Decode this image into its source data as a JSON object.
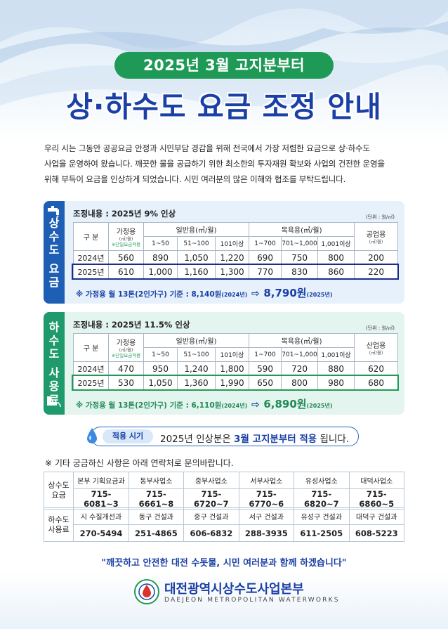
{
  "header": {
    "badge": "2025년 3월 고지분부터",
    "title": "상·하수도 요금 조정 안내"
  },
  "intro": {
    "line1": "우리 시는 그동안 공공요금 안정과 시민부담 경감을 위해 전국에서 가장 저렴한 요금으로 상·하수도",
    "line2": "사업을 운영하여 왔습니다. 깨끗한 물을 공급하기 위한 최소한의 투자재원 확보와 사업의 건전한 운영을",
    "line3": "위해 부득이 요금을 인상하게 되었습니다. 시민 여러분의 많은 이해와 협조를 부탁드립니다."
  },
  "water": {
    "side_chars": [
      "상",
      "수",
      "도",
      "요",
      "금"
    ],
    "adjust": "조정내용 : 2025년 9% 인상",
    "unit": "(단위 : 원/㎥)",
    "h_gubun": "구 분",
    "h_home": "가정용",
    "h_home_unit": "(㎥/월)",
    "h_home_note": "※단일요금적용",
    "h_general": "일반용(㎥/월)",
    "h_bath": "목욕용(㎥/월)",
    "h_ind": "공업용",
    "h_ind_unit": "(㎥/월)",
    "sub": [
      "1~50",
      "51~100",
      "101이상",
      "1~700",
      "701~1,000",
      "1,001이상"
    ],
    "rows": [
      {
        "year": "2024년",
        "v": [
          "560",
          "890",
          "1,050",
          "1,220",
          "690",
          "750",
          "800",
          "200"
        ]
      },
      {
        "year": "2025년",
        "v": [
          "610",
          "1,000",
          "1,160",
          "1,300",
          "770",
          "830",
          "860",
          "220"
        ]
      }
    ],
    "basis_pre": "※ 가정용 월 13톤(2인가구) 기준 : 8,140원",
    "basis_pre_year": "(2024년)",
    "basis_new": "8,790원",
    "basis_new_year": "(2025년)"
  },
  "sewer": {
    "side_chars": [
      "하",
      "수",
      "도",
      "사",
      "용",
      "료"
    ],
    "adjust": "조정내용 : 2025년 11.5% 인상",
    "unit": "(단위 : 원/㎥)",
    "h_gubun": "구 분",
    "h_home": "가정용",
    "h_home_unit": "(㎥/월)",
    "h_home_note": "※단일요금적용",
    "h_general": "일반용(㎥/월)",
    "h_bath": "목욕용(㎥/월)",
    "h_ind": "산업용",
    "h_ind_unit": "(㎥/월)",
    "sub": [
      "1~50",
      "51~100",
      "101이상",
      "1~700",
      "701~1,000",
      "1,001이상"
    ],
    "rows": [
      {
        "year": "2024년",
        "v": [
          "470",
          "950",
          "1,240",
          "1,800",
          "590",
          "720",
          "880",
          "620"
        ]
      },
      {
        "year": "2025년",
        "v": [
          "530",
          "1,050",
          "1,360",
          "1,990",
          "650",
          "800",
          "980",
          "680"
        ]
      }
    ],
    "basis_pre": "※ 가정용 월 13톤(2인가구) 기준 : 6,110원",
    "basis_pre_year": "(2024년)",
    "basis_new": "6,890원",
    "basis_new_year": "(2025년)"
  },
  "apply": {
    "label": "적용 시기",
    "text_pre": "2025년 인상분은",
    "text_bold": "3월 고지분부터 적용",
    "text_post": "됩니다."
  },
  "note": "※ 기타 궁금하신 사항은 아래 연락처로 문의바랍니다.",
  "contact_water": {
    "label_1": "상수도",
    "label_2": "요금",
    "names": [
      "본부 기획요금과",
      "동부사업소",
      "중부사업소",
      "서부사업소",
      "유성사업소",
      "대덕사업소"
    ],
    "phones": [
      "715-6081~3",
      "715-6661~8",
      "715-6720~7",
      "715-6770~6",
      "715-6820~7",
      "715-6860~5"
    ]
  },
  "contact_sewer": {
    "label_1": "하수도",
    "label_2": "사용료",
    "names": [
      "시 수질개선과",
      "동구 건설과",
      "중구 건설과",
      "서구 건설과",
      "유성구 건설과",
      "대덕구 건설과"
    ],
    "phones": [
      "270-5494",
      "251-4865",
      "606-6832",
      "288-3935",
      "611-2505",
      "608-5223"
    ]
  },
  "slogan": "\"깨끗하고 안전한 대전 수돗물, 시민 여러분과 함께 하겠습니다\"",
  "org": {
    "name": "대전광역시상수도사업본부",
    "name_en": "DAEJEON METROPOLITAN WATERWORKS"
  },
  "colors": {
    "primary_blue": "#1a3fa6",
    "green": "#1f9a56"
  }
}
